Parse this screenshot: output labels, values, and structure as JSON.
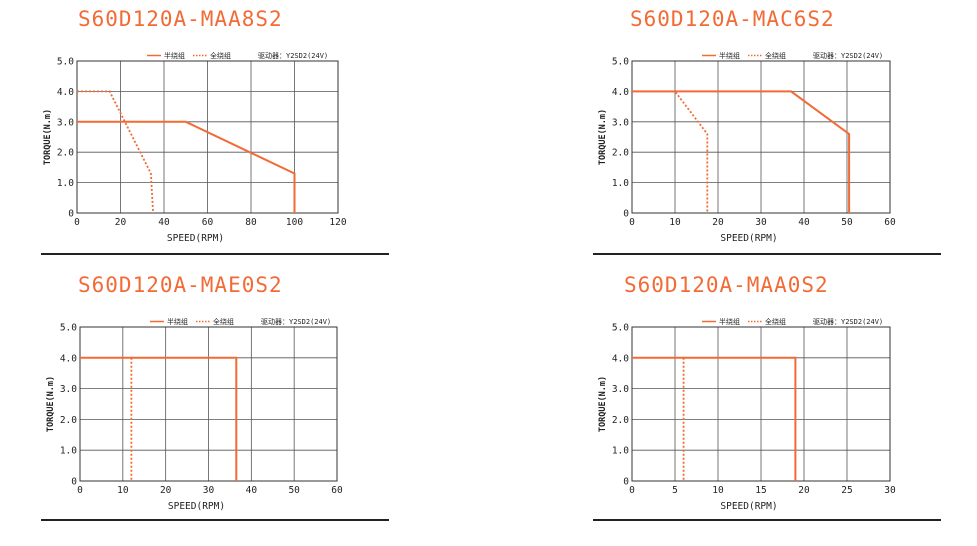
{
  "legend": {
    "half_winding": "半绕组",
    "full_winding": "全绕组",
    "driver": "驱动器：Y2SD2(24V)"
  },
  "axis_labels": {
    "x": "SPEED(RPM)",
    "y": "TORQUE(N.m)"
  },
  "colors": {
    "title": "#f26a35",
    "line": "#f26a35",
    "grid": "#555555"
  },
  "chart_data": [
    {
      "type": "line",
      "title": "S60D120A-MAA8S2",
      "xlabel": "SPEED(RPM)",
      "ylabel": "TORQUE(N.m)",
      "xlim": [
        0,
        120
      ],
      "ylim": [
        0,
        5
      ],
      "x_ticks": [
        0,
        20,
        40,
        60,
        80,
        100,
        120
      ],
      "y_ticks": [
        "0",
        "1.0",
        "2.0",
        "3.0",
        "4.0",
        "5.0"
      ],
      "grid": true,
      "legend_position": "top",
      "series": [
        {
          "name": "半绕组",
          "style": "solid",
          "points": [
            [
              0,
              3.0
            ],
            [
              50,
              3.0
            ],
            [
              100,
              1.3
            ],
            [
              100,
              0
            ]
          ]
        },
        {
          "name": "全绕组",
          "style": "dotted",
          "points": [
            [
              0,
              4.0
            ],
            [
              15,
              4.0
            ],
            [
              34,
              1.3
            ],
            [
              35,
              0
            ]
          ]
        }
      ]
    },
    {
      "type": "line",
      "title": "S60D120A-MAC6S2",
      "xlabel": "SPEED(RPM)",
      "ylabel": "TORQUE(N.m)",
      "xlim": [
        0,
        60
      ],
      "ylim": [
        0,
        5
      ],
      "x_ticks": [
        0,
        10,
        20,
        30,
        40,
        50,
        60
      ],
      "y_ticks": [
        "0",
        "1.0",
        "2.0",
        "3.0",
        "4.0",
        "5.0"
      ],
      "grid": true,
      "legend_position": "top",
      "series": [
        {
          "name": "半绕组",
          "style": "solid",
          "points": [
            [
              0,
              4.0
            ],
            [
              37,
              4.0
            ],
            [
              50.5,
              2.6
            ],
            [
              50.5,
              0
            ]
          ]
        },
        {
          "name": "全绕组",
          "style": "dotted",
          "points": [
            [
              0,
              4.0
            ],
            [
              10,
              4.0
            ],
            [
              17.5,
              2.6
            ],
            [
              17.5,
              0
            ]
          ]
        }
      ]
    },
    {
      "type": "line",
      "title": "S60D120A-MAE0S2",
      "xlabel": "SPEED(RPM)",
      "ylabel": "TORQUE(N.m)",
      "xlim": [
        0,
        60
      ],
      "ylim": [
        0,
        5
      ],
      "x_ticks": [
        0,
        10,
        20,
        30,
        40,
        50,
        60
      ],
      "y_ticks": [
        "0",
        "1.0",
        "2.0",
        "3.0",
        "4.0",
        "5.0"
      ],
      "grid": true,
      "legend_position": "top",
      "series": [
        {
          "name": "半绕组",
          "style": "solid",
          "points": [
            [
              0,
              4.0
            ],
            [
              36.5,
              4.0
            ],
            [
              36.5,
              0
            ]
          ]
        },
        {
          "name": "全绕组",
          "style": "dotted",
          "points": [
            [
              12,
              4.0
            ],
            [
              12,
              0
            ]
          ]
        }
      ]
    },
    {
      "type": "line",
      "title": "S60D120A-MAA0S2",
      "xlabel": "SPEED(RPM)",
      "ylabel": "TORQUE(N.m)",
      "xlim": [
        0,
        30
      ],
      "ylim": [
        0,
        5
      ],
      "x_ticks": [
        0,
        5,
        10,
        15,
        20,
        25,
        30
      ],
      "y_ticks": [
        "0",
        "1.0",
        "2.0",
        "3.0",
        "4.0",
        "5.0"
      ],
      "grid": true,
      "legend_position": "top",
      "series": [
        {
          "name": "半绕组",
          "style": "solid",
          "points": [
            [
              0,
              4.0
            ],
            [
              19,
              4.0
            ],
            [
              19,
              0
            ]
          ]
        },
        {
          "name": "全绕组",
          "style": "dotted",
          "points": [
            [
              6,
              4.0
            ],
            [
              6,
              0
            ]
          ]
        }
      ]
    }
  ]
}
